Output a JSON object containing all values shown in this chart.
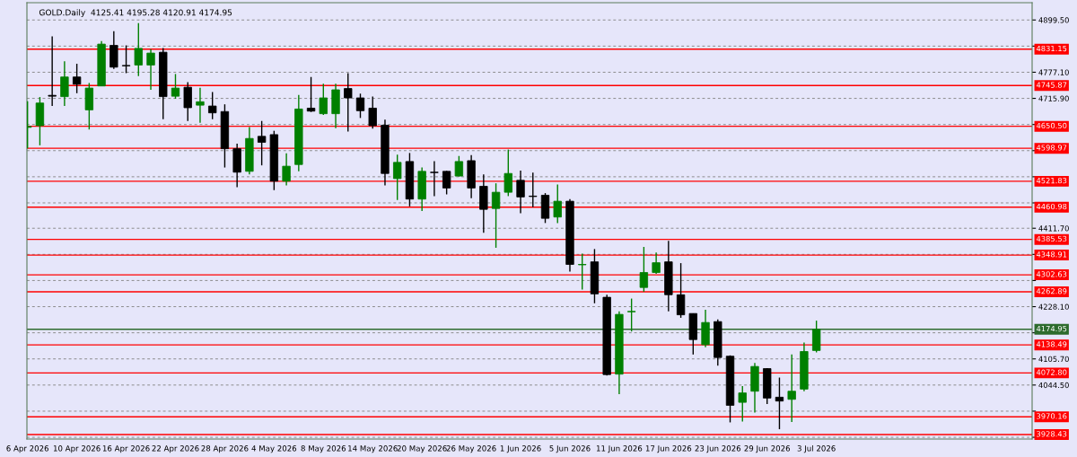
{
  "chart_data": {
    "type": "candlestick",
    "title": "GOLD.Daily  4125.41 4195.28 4120.91 4174.95",
    "categories": [
      "6 Apr 2026",
      null,
      null,
      null,
      "10 Apr 2026",
      null,
      null,
      null,
      "16 Apr 2026",
      null,
      null,
      null,
      "22 Apr 2026",
      null,
      null,
      null,
      "28 Apr 2026",
      null,
      null,
      null,
      "4 May 2026",
      null,
      null,
      null,
      "8 May 2026",
      null,
      null,
      null,
      "14 May 2026",
      null,
      null,
      null,
      "20 May 2026",
      null,
      null,
      null,
      "26 May 2026",
      null,
      null,
      null,
      "1 Jun 2026",
      null,
      null,
      null,
      "5 Jun 2026",
      null,
      null,
      null,
      "11 Jun 2026",
      null,
      null,
      null,
      "17 Jun 2026",
      null,
      null,
      null,
      "23 Jun 2026",
      null,
      null,
      null,
      "29 Jun 2026",
      null,
      null,
      null,
      "3 Jul 2026",
      null,
      null,
      null,
      null,
      null,
      null,
      null,
      null,
      null,
      null,
      null,
      null,
      null,
      null,
      null,
      null,
      null
    ],
    "ohlc": [
      [
        4648,
        4709,
        4599,
        4650
      ],
      [
        4652,
        4719,
        4606,
        4705
      ],
      [
        4723,
        4861,
        4698,
        4721
      ],
      [
        4720,
        4803,
        4698,
        4766
      ],
      [
        4766,
        4797,
        4728,
        4749
      ],
      [
        4689,
        4752,
        4643,
        4740
      ],
      [
        4745,
        4850,
        4745,
        4843
      ],
      [
        4840,
        4873,
        4785,
        4789
      ],
      [
        4793,
        4840,
        4775,
        4792
      ],
      [
        4794,
        4892,
        4768,
        4833
      ],
      [
        4794,
        4831,
        4736,
        4822
      ],
      [
        4824,
        4834,
        4667,
        4720
      ],
      [
        4721,
        4773,
        4715,
        4740
      ],
      [
        4742,
        4754,
        4663,
        4694
      ],
      [
        4700,
        4741,
        4659,
        4708
      ],
      [
        4698,
        4731,
        4667,
        4682
      ],
      [
        4685,
        4702,
        4554,
        4598
      ],
      [
        4598,
        4610,
        4508,
        4543
      ],
      [
        4545,
        4649,
        4538,
        4622
      ],
      [
        4627,
        4663,
        4559,
        4613
      ],
      [
        4631,
        4640,
        4501,
        4522
      ],
      [
        4522,
        4587,
        4512,
        4557
      ],
      [
        4561,
        4724,
        4545,
        4691
      ],
      [
        4693,
        4766,
        4684,
        4686
      ],
      [
        4680,
        4750,
        4677,
        4717
      ],
      [
        4680,
        4750,
        4646,
        4736
      ],
      [
        4739,
        4775,
        4638,
        4717
      ],
      [
        4717,
        4727,
        4670,
        4687
      ],
      [
        4693,
        4720,
        4645,
        4652
      ],
      [
        4653,
        4666,
        4512,
        4540
      ],
      [
        4528,
        4584,
        4478,
        4566
      ],
      [
        4568,
        4588,
        4463,
        4480
      ],
      [
        4480,
        4554,
        4452,
        4545
      ],
      [
        4543,
        4569,
        4487,
        4542
      ],
      [
        4545,
        4546,
        4491,
        4506
      ],
      [
        4534,
        4581,
        4533,
        4568
      ],
      [
        4570,
        4583,
        4482,
        4506
      ],
      [
        4510,
        4538,
        4401,
        4456
      ],
      [
        4458,
        4517,
        4366,
        4496
      ],
      [
        4496,
        4596,
        4487,
        4540
      ],
      [
        4524,
        4547,
        4447,
        4485
      ],
      [
        4487,
        4542,
        4461,
        4486
      ],
      [
        4489,
        4494,
        4424,
        4435
      ],
      [
        4438,
        4514,
        4424,
        4475
      ],
      [
        4475,
        4480,
        4310,
        4327
      ],
      [
        4326,
        4352,
        4268,
        4327
      ],
      [
        4333,
        4363,
        4236,
        4258
      ],
      [
        4250,
        4256,
        4067,
        4069
      ],
      [
        4070,
        4217,
        4023,
        4210
      ],
      [
        4216,
        4247,
        4170,
        4217
      ],
      [
        4273,
        4368,
        4263,
        4308
      ],
      [
        4308,
        4355,
        4305,
        4331
      ],
      [
        4333,
        4382,
        4217,
        4256
      ],
      [
        4256,
        4330,
        4202,
        4209
      ],
      [
        4212,
        4212,
        4116,
        4151
      ],
      [
        4139,
        4221,
        4133,
        4191
      ],
      [
        4193,
        4198,
        4090,
        4109
      ],
      [
        4112,
        4114,
        3957,
        3997
      ],
      [
        4004,
        4042,
        3959,
        4026
      ],
      [
        4030,
        4096,
        3980,
        4088
      ],
      [
        4083,
        4084,
        4000,
        4014
      ],
      [
        4016,
        4062,
        3941,
        4007
      ],
      [
        4011,
        4116,
        3958,
        4030
      ],
      [
        4035,
        4144,
        4030,
        4123
      ],
      [
        4125.41,
        4195.28,
        4120.91,
        4174.95
      ],
      null,
      null,
      null,
      null,
      null,
      null,
      null,
      null,
      null,
      null,
      null,
      null,
      null,
      null,
      null,
      null,
      null
    ],
    "colors": [
      "#008000",
      "#008000",
      "#000000",
      "#008000",
      "#000000",
      "#008000",
      "#008000",
      "#000000",
      "#000000",
      "#008000",
      "#008000",
      "#000000",
      "#008000",
      "#000000",
      "#008000",
      "#000000",
      "#000000",
      "#000000",
      "#008000",
      "#000000",
      "#000000",
      "#008000",
      "#008000",
      "#000000",
      "#008000",
      "#008000",
      "#000000",
      "#000000",
      "#000000",
      "#000000",
      "#008000",
      "#000000",
      "#008000",
      "#000000",
      "#000000",
      "#008000",
      "#000000",
      "#000000",
      "#008000",
      "#008000",
      "#000000",
      "#000000",
      "#000000",
      "#008000",
      "#000000",
      "#008000",
      "#000000",
      "#000000",
      "#008000",
      "#008000",
      "#008000",
      "#008000",
      "#000000",
      "#000000",
      "#000000",
      "#008000",
      "#000000",
      "#000000",
      "#008000",
      "#008000",
      "#000000",
      "#000000",
      "#008000",
      "#008000",
      "#008000",
      null,
      null,
      null,
      null,
      null,
      null,
      null,
      null,
      null,
      null,
      null,
      null,
      null,
      null,
      null,
      null,
      null
    ],
    "ylim": [
      3918,
      4940
    ],
    "yticks": [
      {
        "value": 4899.5,
        "label": "4899.50"
      },
      {
        "value": 4838.3,
        "label": null
      },
      {
        "value": 4777.1,
        "label": "4777.10"
      },
      {
        "value": 4715.9,
        "label": "4715.90"
      },
      {
        "value": 4654.7,
        "label": null
      },
      {
        "value": 4593.5,
        "label": null
      },
      {
        "value": 4532.3,
        "label": null
      },
      {
        "value": 4471.1,
        "label": null
      },
      {
        "value": 4411.7,
        "label": "4411.70"
      },
      {
        "value": 4350.5,
        "label": null
      },
      {
        "value": 4289.3,
        "label": null
      },
      {
        "value": 4228.1,
        "label": "4228.10"
      },
      {
        "value": 4166.9,
        "label": null
      },
      {
        "value": 4105.7,
        "label": "4105.70"
      },
      {
        "value": 4044.5,
        "label": "4044.50"
      },
      {
        "value": 3983.3,
        "label": null
      },
      {
        "value": 3922.1,
        "label": null
      }
    ],
    "ref_lines": [
      {
        "axis": "y",
        "value": 4831.15,
        "label": "4831.15",
        "color": "#ff0000"
      },
      {
        "axis": "y",
        "value": 4745.87,
        "label": "4745.87",
        "color": "#ff0000"
      },
      {
        "axis": "y",
        "value": 4650.5,
        "label": "4650.50",
        "color": "#ff0000"
      },
      {
        "axis": "y",
        "value": 4598.97,
        "label": "4598.97",
        "color": "#ff0000"
      },
      {
        "axis": "y",
        "value": 4521.83,
        "label": "4521.83",
        "color": "#ff0000"
      },
      {
        "axis": "y",
        "value": 4460.98,
        "label": "4460.98",
        "color": "#ff0000"
      },
      {
        "axis": "y",
        "value": 4385.53,
        "label": "4385.53",
        "color": "#ff0000"
      },
      {
        "axis": "y",
        "value": 4348.91,
        "label": "4348.91",
        "color": "#ff0000"
      },
      {
        "axis": "y",
        "value": 4302.63,
        "label": "4302.63",
        "color": "#ff0000"
      },
      {
        "axis": "y",
        "value": 4262.89,
        "label": "4262.89",
        "color": "#ff0000"
      },
      {
        "axis": "y",
        "value": 4174.95,
        "label": "4174.95",
        "color": "#2d6b2d"
      },
      {
        "axis": "y",
        "value": 4138.49,
        "label": "4138.49",
        "color": "#ff0000"
      },
      {
        "axis": "y",
        "value": 4072.8,
        "label": "4072.80",
        "color": "#ff0000"
      },
      {
        "axis": "y",
        "value": 3970.16,
        "label": "3970.16",
        "color": "#ff0000"
      },
      {
        "axis": "y",
        "value": 3928.43,
        "label": "3928.43",
        "color": "#ff0000"
      }
    ],
    "grid": true,
    "legend": false
  }
}
